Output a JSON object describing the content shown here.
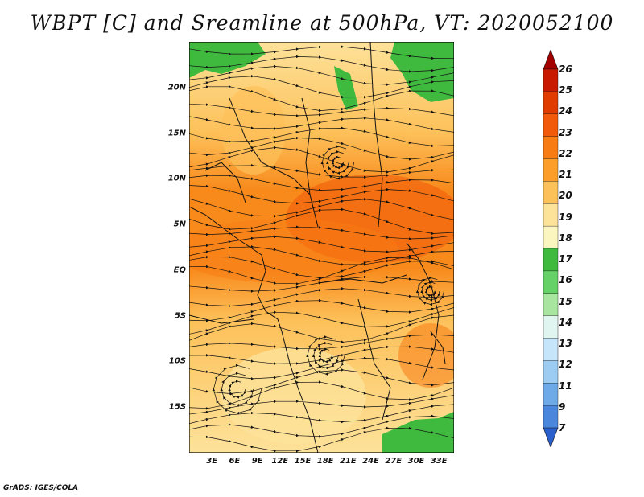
{
  "title": "WBPT [C] and Sreamline at 500hPa, VT: 2020052100",
  "footer": "GrADS: IGES/COLA",
  "lat_labels": [
    "20N",
    "15N",
    "10N",
    "5N",
    "EQ",
    "5S",
    "10S",
    "15S"
  ],
  "lat_values": [
    20,
    15,
    10,
    5,
    0,
    -5,
    -10,
    -15
  ],
  "lon_labels": [
    "3E",
    "6E",
    "9E",
    "12E",
    "15E",
    "18E",
    "21E",
    "24E",
    "27E",
    "30E",
    "33E"
  ],
  "lon_values": [
    3,
    6,
    9,
    12,
    15,
    18,
    21,
    24,
    27,
    30,
    33
  ],
  "extent": {
    "lon_min": 0,
    "lon_max": 35,
    "lat_min": -20,
    "lat_max": 25
  },
  "colorbar": {
    "labels": [
      "26",
      "25",
      "24",
      "23",
      "22",
      "21",
      "20",
      "19",
      "18",
      "17",
      "16",
      "15",
      "14",
      "13",
      "12",
      "11",
      "9",
      "7"
    ],
    "colors": [
      "#a50000",
      "#c81a00",
      "#e03c00",
      "#f05a0a",
      "#f77c14",
      "#fb9e2a",
      "#fdc15a",
      "#fde29a",
      "#fbf5c0",
      "#3fba3f",
      "#66d166",
      "#a8e6a0",
      "#e0f5f0",
      "#c6e4fa",
      "#9cccf2",
      "#6faae8",
      "#4a86dc",
      "#2a60cc"
    ]
  },
  "icons": {
    "colorbar_top": "triangle-up-icon",
    "colorbar_bottom": "triangle-down-icon"
  }
}
